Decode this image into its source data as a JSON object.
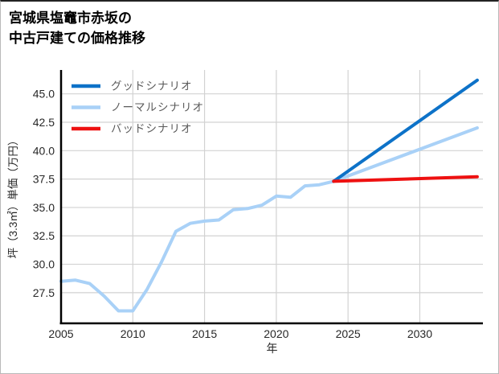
{
  "window": {
    "title_line1": "宮城県塩竈市赤坂の",
    "title_line2": "中古戸建ての価格推移"
  },
  "chart_data": {
    "type": "line",
    "title": "宮城県塩竈市赤坂の中古戸建ての価格推移",
    "xlabel": "年",
    "ylabel": "坪（3.3㎡）単価（万円）",
    "xlim": [
      2005,
      2034.4
    ],
    "ylim": [
      24.8,
      47.1
    ],
    "x_ticks": [
      2005,
      2010,
      2015,
      2020,
      2025,
      2030
    ],
    "y_ticks": [
      27.5,
      30.0,
      32.5,
      35.0,
      37.5,
      40.0,
      42.5,
      45.0
    ],
    "grid": true,
    "legend_position": "upper-left",
    "colors": {
      "good": "#0d72c8",
      "normal": "#a9d1f7",
      "bad": "#ee1111",
      "gridline": "#d2d2d2",
      "spine": "#000000",
      "tick_text": "#282828",
      "legend_text": "#5a5a5a"
    },
    "series": [
      {
        "name": "グッドシナリオ",
        "color": "#0d72c8",
        "x": [
          2024,
          2034
        ],
        "values": [
          37.3,
          46.2
        ]
      },
      {
        "name": "ノーマルシナリオ",
        "color": "#a9d1f7",
        "x": [
          2005,
          2006,
          2007,
          2008,
          2009,
          2010,
          2011,
          2012,
          2013,
          2014,
          2015,
          2016,
          2017,
          2018,
          2019,
          2020,
          2021,
          2022,
          2023,
          2024,
          2034
        ],
        "values": [
          28.5,
          28.6,
          28.3,
          27.2,
          25.9,
          25.9,
          27.8,
          30.2,
          32.9,
          33.6,
          33.8,
          33.9,
          34.8,
          34.9,
          35.2,
          36.0,
          35.9,
          36.9,
          37.0,
          37.3,
          42.0
        ]
      },
      {
        "name": "バッドシナリオ",
        "color": "#ee1111",
        "x": [
          2024,
          2034
        ],
        "values": [
          37.3,
          37.7
        ]
      }
    ]
  }
}
